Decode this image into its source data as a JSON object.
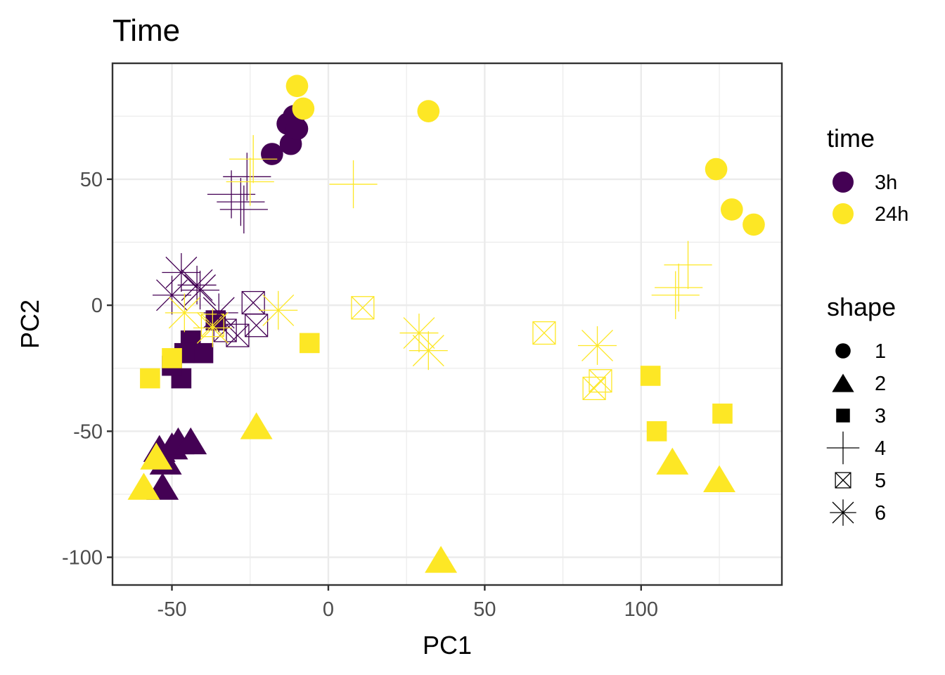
{
  "chart_data": {
    "type": "scatter",
    "title": "Time",
    "xlabel": "PC1",
    "ylabel": "PC2",
    "xlim": [
      -69,
      145
    ],
    "ylim": [
      -111,
      96
    ],
    "x_ticks": [
      -50,
      0,
      50,
      100
    ],
    "y_ticks": [
      -100,
      -50,
      0,
      50
    ],
    "x_tick_labels": [
      "-50",
      "0",
      "50",
      "100"
    ],
    "y_tick_labels": [
      "-100",
      "-50",
      "0",
      "50"
    ],
    "grid": true,
    "legend_position": "right",
    "colors": {
      "3h": "#440154",
      "24h": "#FDE725"
    },
    "legend": {
      "color_title": "time",
      "color_entries": [
        {
          "label": "3h",
          "key": "3h"
        },
        {
          "label": "24h",
          "key": "24h"
        }
      ],
      "shape_title": "shape",
      "shape_entries": [
        {
          "label": "1",
          "shape": 1
        },
        {
          "label": "2",
          "shape": 2
        },
        {
          "label": "3",
          "shape": 3
        },
        {
          "label": "4",
          "shape": 4
        },
        {
          "label": "5",
          "shape": 5
        },
        {
          "label": "6",
          "shape": 6
        }
      ]
    },
    "points": [
      {
        "x": -18,
        "y": 60,
        "time": "3h",
        "shape": 1
      },
      {
        "x": -12,
        "y": 64,
        "time": "3h",
        "shape": 1
      },
      {
        "x": -13,
        "y": 72,
        "time": "3h",
        "shape": 1
      },
      {
        "x": -11,
        "y": 75,
        "time": "3h",
        "shape": 1
      },
      {
        "x": -10,
        "y": 70,
        "time": "3h",
        "shape": 1
      },
      {
        "x": -10,
        "y": 87,
        "time": "24h",
        "shape": 1
      },
      {
        "x": -8,
        "y": 78,
        "time": "24h",
        "shape": 1
      },
      {
        "x": 32,
        "y": 77,
        "time": "24h",
        "shape": 1
      },
      {
        "x": 124,
        "y": 54,
        "time": "24h",
        "shape": 1
      },
      {
        "x": 129,
        "y": 38,
        "time": "24h",
        "shape": 1
      },
      {
        "x": 136,
        "y": 32,
        "time": "24h",
        "shape": 1
      },
      {
        "x": -54,
        "y": -57,
        "time": "3h",
        "shape": 2
      },
      {
        "x": -52,
        "y": -62,
        "time": "3h",
        "shape": 2
      },
      {
        "x": -50,
        "y": -56,
        "time": "3h",
        "shape": 2
      },
      {
        "x": -48,
        "y": -54,
        "time": "3h",
        "shape": 2
      },
      {
        "x": -44,
        "y": -54,
        "time": "3h",
        "shape": 2
      },
      {
        "x": -53,
        "y": -72,
        "time": "3h",
        "shape": 2
      },
      {
        "x": -55,
        "y": -60,
        "time": "24h",
        "shape": 2
      },
      {
        "x": -59,
        "y": -72,
        "time": "24h",
        "shape": 2
      },
      {
        "x": -23,
        "y": -48,
        "time": "24h",
        "shape": 2
      },
      {
        "x": 36,
        "y": -101,
        "time": "24h",
        "shape": 2
      },
      {
        "x": 110,
        "y": -62,
        "time": "24h",
        "shape": 2
      },
      {
        "x": 125,
        "y": -69,
        "time": "24h",
        "shape": 2
      },
      {
        "x": -44,
        "y": -14,
        "time": "3h",
        "shape": 3
      },
      {
        "x": -40,
        "y": -19,
        "time": "3h",
        "shape": 3
      },
      {
        "x": -46,
        "y": -19,
        "time": "3h",
        "shape": 3
      },
      {
        "x": -36,
        "y": -6,
        "time": "3h",
        "shape": 3
      },
      {
        "x": -47,
        "y": -29,
        "time": "3h",
        "shape": 3
      },
      {
        "x": -50,
        "y": -24,
        "time": "3h",
        "shape": 3
      },
      {
        "x": -57,
        "y": -29,
        "time": "24h",
        "shape": 3
      },
      {
        "x": -50,
        "y": -21,
        "time": "24h",
        "shape": 3
      },
      {
        "x": -6,
        "y": -15,
        "time": "24h",
        "shape": 3
      },
      {
        "x": 103,
        "y": -28,
        "time": "24h",
        "shape": 3
      },
      {
        "x": 105,
        "y": -50,
        "time": "24h",
        "shape": 3
      },
      {
        "x": 126,
        "y": -43,
        "time": "24h",
        "shape": 3
      },
      {
        "x": -31,
        "y": 44,
        "time": "3h",
        "shape": 4
      },
      {
        "x": -28,
        "y": 41,
        "time": "3h",
        "shape": 4
      },
      {
        "x": -26,
        "y": 51,
        "time": "3h",
        "shape": 4
      },
      {
        "x": -27,
        "y": 38,
        "time": "3h",
        "shape": 4
      },
      {
        "x": -24,
        "y": 58,
        "time": "24h",
        "shape": 4
      },
      {
        "x": -25,
        "y": 49,
        "time": "24h",
        "shape": 4
      },
      {
        "x": 8,
        "y": 48,
        "time": "24h",
        "shape": 4
      },
      {
        "x": 111,
        "y": 4,
        "time": "24h",
        "shape": 4
      },
      {
        "x": 112,
        "y": 7,
        "time": "24h",
        "shape": 4
      },
      {
        "x": 115,
        "y": 16,
        "time": "24h",
        "shape": 4
      },
      {
        "x": -24,
        "y": 1,
        "time": "3h",
        "shape": 5
      },
      {
        "x": -23,
        "y": -8,
        "time": "3h",
        "shape": 5
      },
      {
        "x": -29,
        "y": -12,
        "time": "3h",
        "shape": 5
      },
      {
        "x": -33,
        "y": -10,
        "time": "3h",
        "shape": 5
      },
      {
        "x": -37,
        "y": -8,
        "time": "24h",
        "shape": 5
      },
      {
        "x": 11,
        "y": -1,
        "time": "24h",
        "shape": 5
      },
      {
        "x": 69,
        "y": -11,
        "time": "24h",
        "shape": 5
      },
      {
        "x": 85,
        "y": -33,
        "time": "24h",
        "shape": 5
      },
      {
        "x": 87,
        "y": -30,
        "time": "24h",
        "shape": 5
      },
      {
        "x": -47,
        "y": 13,
        "time": "3h",
        "shape": 6
      },
      {
        "x": -42,
        "y": 8,
        "time": "3h",
        "shape": 6
      },
      {
        "x": -50,
        "y": 4,
        "time": "3h",
        "shape": 6
      },
      {
        "x": -41,
        "y": 6,
        "time": "3h",
        "shape": 6
      },
      {
        "x": -35,
        "y": -3,
        "time": "3h",
        "shape": 6
      },
      {
        "x": -46,
        "y": -3,
        "time": "24h",
        "shape": 6
      },
      {
        "x": -37,
        "y": -9,
        "time": "24h",
        "shape": 6
      },
      {
        "x": -16,
        "y": -2,
        "time": "24h",
        "shape": 6
      },
      {
        "x": 29,
        "y": -11,
        "time": "24h",
        "shape": 6
      },
      {
        "x": 32,
        "y": -18,
        "time": "24h",
        "shape": 6
      },
      {
        "x": 86,
        "y": -16,
        "time": "24h",
        "shape": 6
      }
    ]
  }
}
